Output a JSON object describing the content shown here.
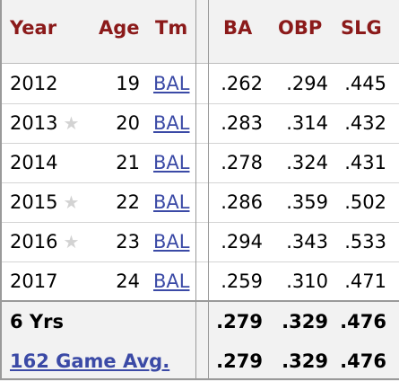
{
  "header": {
    "year": "Year",
    "age": "Age",
    "tm": "Tm",
    "ba": "BA",
    "obp": "OBP",
    "slg": "SLG"
  },
  "rows": [
    {
      "year": "2012",
      "allstar": false,
      "age": "19",
      "tm": "BAL",
      "ba": ".262",
      "obp": ".294",
      "slg": ".445"
    },
    {
      "year": "2013",
      "allstar": true,
      "age": "20",
      "tm": "BAL",
      "ba": ".283",
      "obp": ".314",
      "slg": ".432"
    },
    {
      "year": "2014",
      "allstar": false,
      "age": "21",
      "tm": "BAL",
      "ba": ".278",
      "obp": ".324",
      "slg": ".431"
    },
    {
      "year": "2015",
      "allstar": true,
      "age": "22",
      "tm": "BAL",
      "ba": ".286",
      "obp": ".359",
      "slg": ".502"
    },
    {
      "year": "2016",
      "allstar": true,
      "age": "23",
      "tm": "BAL",
      "ba": ".294",
      "obp": ".343",
      "slg": ".533"
    },
    {
      "year": "2017",
      "allstar": false,
      "age": "24",
      "tm": "BAL",
      "ba": ".259",
      "obp": ".310",
      "slg": ".471"
    }
  ],
  "footer": [
    {
      "label": "6 Yrs",
      "link": false,
      "ba": ".279",
      "obp": ".329",
      "slg": ".476"
    },
    {
      "label": "162 Game Avg.",
      "link": true,
      "ba": ".279",
      "obp": ".329",
      "slg": ".476"
    }
  ],
  "allstar_symbol": "★",
  "colors": {
    "header_text": "#8b1a1a",
    "link": "#3b4aa6",
    "header_bg": "#f2f2f2"
  }
}
